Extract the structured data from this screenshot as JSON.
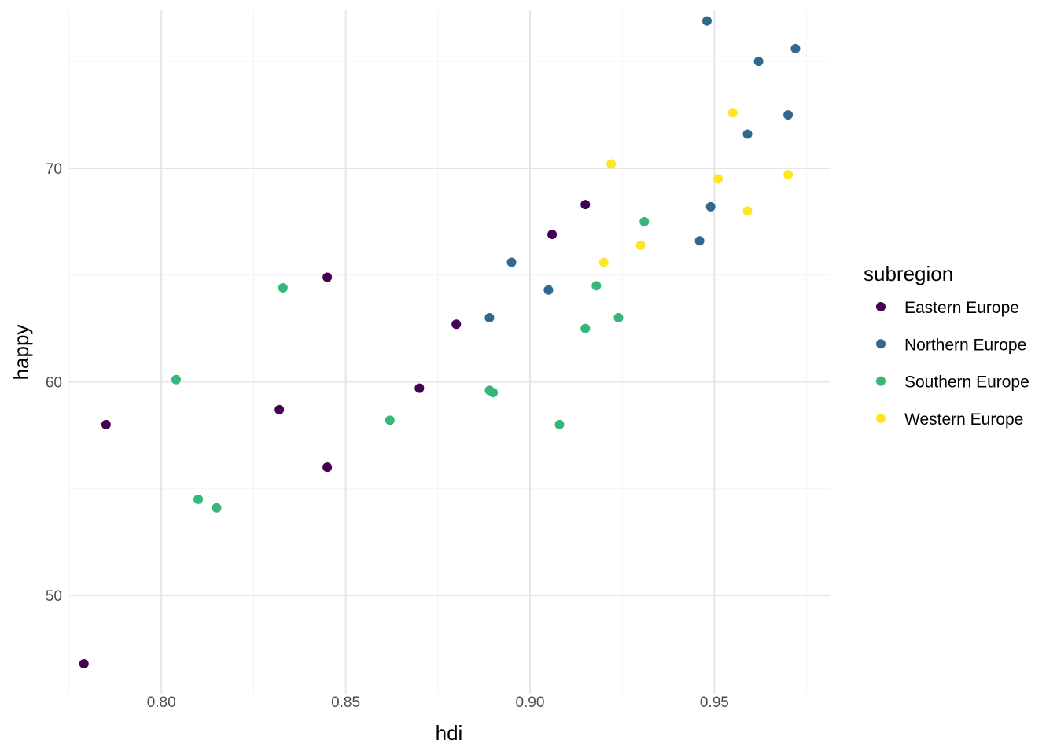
{
  "chart_data": {
    "type": "scatter",
    "title": "",
    "xlabel": "hdi",
    "ylabel": "happy",
    "xlim": [
      0.775,
      0.9815
    ],
    "ylim": [
      45.4,
      77.4
    ],
    "x_ticks": [
      0.8,
      0.85,
      0.9,
      0.95
    ],
    "x_tick_labels": [
      "0.80",
      "0.85",
      "0.90",
      "0.95"
    ],
    "y_ticks": [
      50,
      60,
      70
    ],
    "y_tick_labels": [
      "50",
      "60",
      "70"
    ],
    "grid": true,
    "legend": {
      "title": "subregion",
      "placement": "right"
    },
    "series": [
      {
        "name": "Eastern Europe",
        "color": "#440154",
        "points": [
          [
            0.779,
            46.8
          ],
          [
            0.785,
            58.0
          ],
          [
            0.832,
            58.7
          ],
          [
            0.845,
            56.0
          ],
          [
            0.845,
            64.9
          ],
          [
            0.87,
            59.7
          ],
          [
            0.88,
            62.7
          ],
          [
            0.906,
            66.9
          ],
          [
            0.915,
            68.3
          ]
        ]
      },
      {
        "name": "Northern Europe",
        "color": "#31688e",
        "points": [
          [
            0.889,
            63.0
          ],
          [
            0.895,
            65.6
          ],
          [
            0.905,
            64.3
          ],
          [
            0.946,
            66.6
          ],
          [
            0.948,
            76.9
          ],
          [
            0.949,
            68.2
          ],
          [
            0.959,
            71.6
          ],
          [
            0.962,
            75.0
          ],
          [
            0.97,
            72.5
          ],
          [
            0.972,
            75.6
          ]
        ]
      },
      {
        "name": "Southern Europe",
        "color": "#35b779",
        "points": [
          [
            0.804,
            60.1
          ],
          [
            0.81,
            54.5
          ],
          [
            0.815,
            54.1
          ],
          [
            0.833,
            64.4
          ],
          [
            0.862,
            58.2
          ],
          [
            0.889,
            59.6
          ],
          [
            0.89,
            59.5
          ],
          [
            0.908,
            58.0
          ],
          [
            0.915,
            62.5
          ],
          [
            0.918,
            64.5
          ],
          [
            0.924,
            63.0
          ],
          [
            0.931,
            67.5
          ]
        ]
      },
      {
        "name": "Western Europe",
        "color": "#fde725",
        "points": [
          [
            0.92,
            65.6
          ],
          [
            0.922,
            70.2
          ],
          [
            0.93,
            66.4
          ],
          [
            0.951,
            69.5
          ],
          [
            0.955,
            72.6
          ],
          [
            0.959,
            68.0
          ],
          [
            0.97,
            69.7
          ]
        ]
      }
    ]
  }
}
